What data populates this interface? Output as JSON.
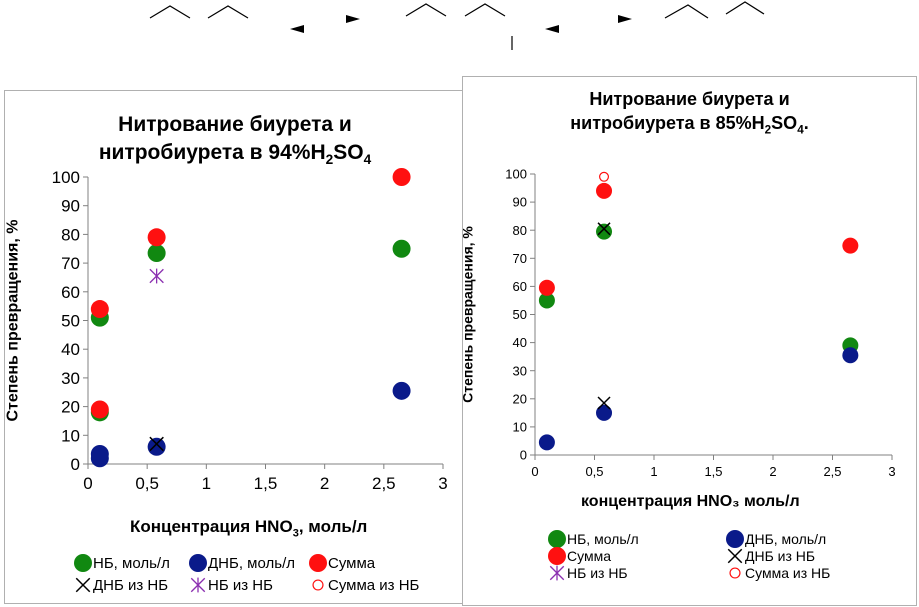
{
  "colors": {
    "nb": "#118811",
    "dnb": "#0a1a8a",
    "sum": "#ff1010",
    "nb_from_nb": "#8b2fb0"
  },
  "chart_data": [
    {
      "type": "scatter",
      "title_line1": "Нитрование биурета и",
      "title_line2_prefix": "нитробиурета в 94%H",
      "title_line2_sub1": "2",
      "title_line2_mid": "SO",
      "title_line2_sub2": "4",
      "ylabel": "Степень превращения, %",
      "xlabel_prefix": "Концентрация HNO",
      "xlabel_sub": "3",
      "xlabel_suffix": ", моль/л",
      "xlim": [
        0,
        3
      ],
      "ylim": [
        0,
        100
      ],
      "x_ticks": [
        "0",
        "0,5",
        "1",
        "1,5",
        "2",
        "2,5",
        "3"
      ],
      "y_ticks": [
        "0",
        "10",
        "20",
        "30",
        "40",
        "50",
        "60",
        "70",
        "80",
        "90",
        "100"
      ],
      "grid": false,
      "legend_position": "bottom",
      "series": [
        {
          "name": "НБ, моль/л",
          "marker": "dot",
          "color": "#118811",
          "points": [
            [
              0.1,
              18
            ],
            [
              0.1,
              51
            ],
            [
              0.58,
              73.5
            ],
            [
              2.65,
              75
            ]
          ]
        },
        {
          "name": "ДНБ, моль/л",
          "marker": "dot",
          "color": "#0a1a8a",
          "points": [
            [
              0.1,
              2
            ],
            [
              0.1,
              3.5
            ],
            [
              0.58,
              6
            ],
            [
              2.65,
              25.5
            ]
          ]
        },
        {
          "name": "Сумма",
          "marker": "dot",
          "color": "#ff1010",
          "points": [
            [
              0.1,
              19
            ],
            [
              0.1,
              54
            ],
            [
              0.58,
              79
            ],
            [
              2.65,
              100
            ]
          ]
        },
        {
          "name": "ДНБ из НБ",
          "marker": "x",
          "color": "#000000",
          "points": [
            [
              0.58,
              7
            ]
          ]
        },
        {
          "name": "НБ из НБ",
          "marker": "star",
          "color": "#8b2fb0",
          "points": [
            [
              0.58,
              65.5
            ]
          ]
        },
        {
          "name": "Сумма из НБ",
          "marker": "ring",
          "color": "#ff1010",
          "points": []
        }
      ]
    },
    {
      "type": "scatter",
      "title_line1": "Нитрование биурета и",
      "title_line2_prefix": "нитробиурета в 85%H",
      "title_line2_sub1": "2",
      "title_line2_mid": "SO",
      "title_line2_sub2": "4",
      "title_line2_end": ".",
      "ylabel": "Степень превращения, %",
      "xlabel": "концентрация HNO₃ моль/л",
      "xlim": [
        0,
        3
      ],
      "ylim": [
        0,
        100
      ],
      "x_ticks": [
        "0",
        "0,5",
        "1",
        "1,5",
        "2",
        "2,5",
        "3"
      ],
      "y_ticks": [
        "0",
        "10",
        "20",
        "30",
        "40",
        "50",
        "60",
        "70",
        "80",
        "90",
        "100"
      ],
      "grid": false,
      "legend_position": "bottom",
      "series": [
        {
          "name": "НБ, моль/л",
          "marker": "dot",
          "color": "#118811",
          "points": [
            [
              0.1,
              55
            ],
            [
              0.58,
              79.5
            ],
            [
              2.65,
              39
            ]
          ]
        },
        {
          "name": "ДНБ, моль/л",
          "marker": "dot",
          "color": "#0a1a8a",
          "points": [
            [
              0.1,
              4.5
            ],
            [
              0.58,
              15
            ],
            [
              2.65,
              35.5
            ]
          ]
        },
        {
          "name": "Сумма",
          "marker": "dot",
          "color": "#ff1010",
          "points": [
            [
              0.1,
              59.5
            ],
            [
              0.58,
              94
            ],
            [
              2.65,
              74.5
            ]
          ]
        },
        {
          "name": "ДНБ из НБ",
          "marker": "x",
          "color": "#000000",
          "points": [
            [
              0.58,
              18.5
            ],
            [
              0.58,
              80.5
            ]
          ]
        },
        {
          "name": "НБ из НБ",
          "marker": "star",
          "color": "#8b2fb0",
          "points": []
        },
        {
          "name": "Сумма из НБ",
          "marker": "ring",
          "color": "#ff1010",
          "points": [
            [
              0.58,
              99
            ]
          ]
        }
      ]
    }
  ]
}
